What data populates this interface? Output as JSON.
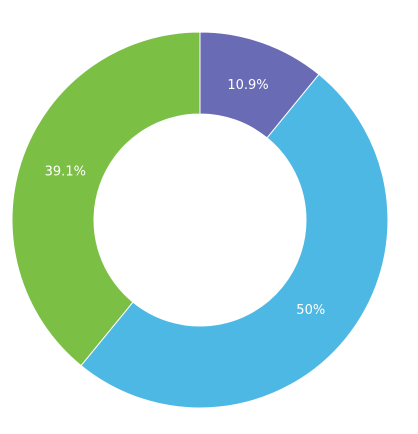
{
  "chart_data": {
    "type": "donut",
    "values": [
      10.9,
      50,
      39.1
    ],
    "value_labels": [
      "10.9%",
      "50%",
      "39.1%"
    ],
    "colors": [
      "#6a6bb5",
      "#4cb8e3",
      "#7bbf44"
    ]
  }
}
